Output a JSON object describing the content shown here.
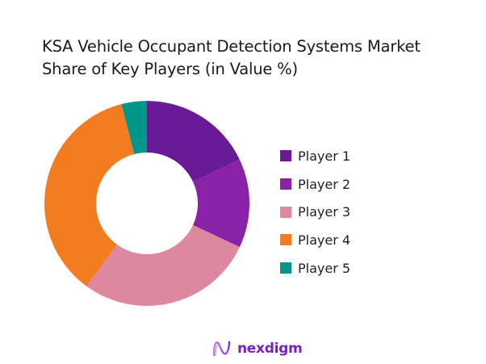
{
  "chart_data": {
    "type": "pie",
    "donut": true,
    "title_lines": [
      "KSA Vehicle Occupant Detection Systems Market",
      "Share of Key Players (in Value %)"
    ],
    "categories": [
      "Player 1",
      "Player 2",
      "Player 3",
      "Player 4",
      "Player 5"
    ],
    "values": [
      18,
      14,
      28,
      36,
      4
    ],
    "colors": [
      "#691a96",
      "#8a22a8",
      "#de88a0",
      "#f47c20",
      "#00968a"
    ],
    "legend_position": "right"
  },
  "logo": {
    "text": "nexdigm"
  }
}
